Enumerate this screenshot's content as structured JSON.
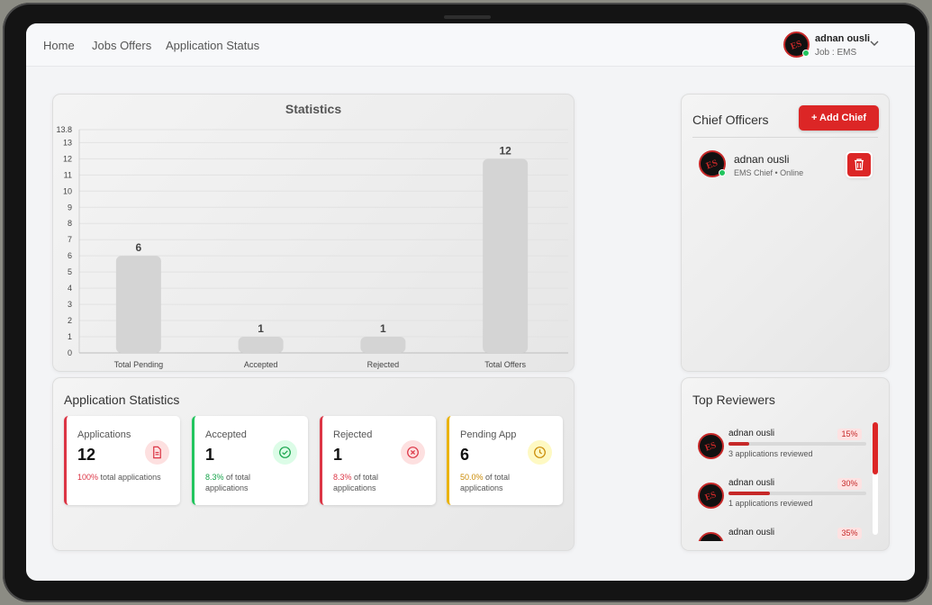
{
  "nav": {
    "links": [
      "Home",
      "Jobs Offers",
      "Application Status"
    ],
    "user_name": "adnan ousli",
    "user_job": "Job : EMS"
  },
  "avatar_text": "ES",
  "colors": {
    "accent": "#dc2626",
    "success": "#22c55e",
    "warning": "#eab308",
    "bar": "#d4d4d4"
  },
  "chart": {
    "title": "Statistics",
    "chart_data": {
      "type": "bar",
      "title": "Statistics",
      "categories": [
        "Total Pending",
        "Accepted",
        "Rejected",
        "Total Offers"
      ],
      "values": [
        6,
        1,
        1,
        12
      ],
      "ylim": [
        0,
        13.8
      ],
      "yticks": [
        "0",
        "1",
        "2",
        "3",
        "4",
        "5",
        "6",
        "7",
        "8",
        "9",
        "10",
        "11",
        "12",
        "13",
        "13.8"
      ],
      "grid": true
    }
  },
  "app_stats": {
    "title": "Application Statistics",
    "items": [
      {
        "label": "Applications",
        "value": "12",
        "pct": "100%",
        "desc": " total applications",
        "color": "#dc3545",
        "icon": "document-icon"
      },
      {
        "label": "Accepted",
        "value": "1",
        "pct": "8.3%",
        "desc": " of total applications",
        "color": "#22c55e",
        "icon": "check-circle-icon"
      },
      {
        "label": "Rejected",
        "value": "1",
        "pct": "8.3%",
        "desc": " of total applications",
        "color": "#dc3545",
        "icon": "x-circle-icon"
      },
      {
        "label": "Pending App",
        "value": "6",
        "pct": "50.0%",
        "desc": " of total applications",
        "color": "#eab308",
        "icon": "clock-icon"
      }
    ]
  },
  "chiefs": {
    "title": "Chief Officers",
    "add_label": "+ Add Chief",
    "items": [
      {
        "name": "adnan ousli",
        "subtitle": "EMS Chief • Online"
      }
    ]
  },
  "reviewers": {
    "title": "Top Reviewers",
    "items": [
      {
        "name": "adnan ousli",
        "pct": "15%",
        "progress": 0.15,
        "sub": "3 applications reviewed"
      },
      {
        "name": "adnan ousli",
        "pct": "30%",
        "progress": 0.3,
        "sub": "1 applications reviewed"
      },
      {
        "name": "adnan ousli",
        "pct": "35%",
        "progress": 0.35,
        "sub": ""
      }
    ]
  }
}
